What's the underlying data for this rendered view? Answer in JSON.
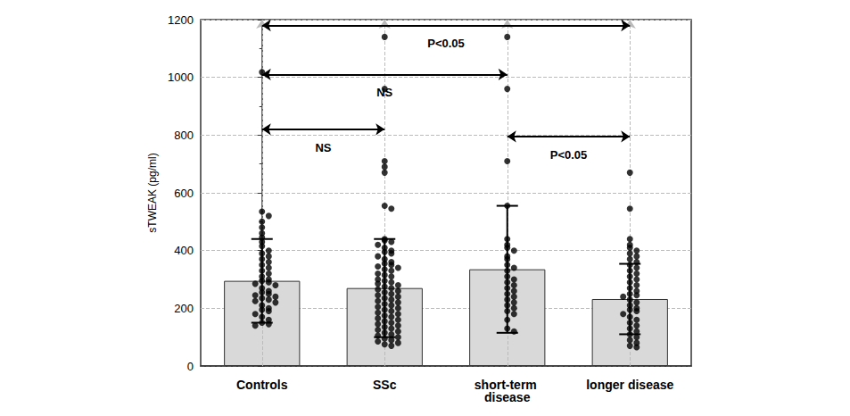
{
  "chart_data": {
    "type": "bar",
    "categories": [
      "Controls",
      "SSc",
      "short-term disease",
      "longer disease"
    ],
    "values": [
      295,
      270,
      335,
      232
    ],
    "errors": [
      145,
      170,
      220,
      122
    ],
    "points": [
      [
        1018,
        535,
        520,
        500,
        480,
        460,
        445,
        430,
        415,
        400,
        390,
        380,
        370,
        360,
        350,
        340,
        330,
        320,
        310,
        300,
        295,
        290,
        285,
        280,
        270,
        260,
        255,
        250,
        245,
        240,
        235,
        230,
        225,
        220,
        210,
        200,
        195,
        190,
        180,
        170,
        160,
        150,
        145,
        140
      ],
      [
        1140,
        960,
        710,
        690,
        670,
        555,
        545,
        440,
        435,
        430,
        420,
        410,
        400,
        395,
        390,
        380,
        370,
        360,
        355,
        350,
        345,
        340,
        335,
        330,
        320,
        315,
        310,
        300,
        295,
        290,
        285,
        280,
        275,
        270,
        265,
        260,
        255,
        250,
        245,
        240,
        235,
        230,
        225,
        220,
        215,
        210,
        205,
        200,
        195,
        190,
        185,
        180,
        175,
        170,
        165,
        160,
        155,
        150,
        145,
        140,
        135,
        130,
        125,
        120,
        115,
        110,
        105,
        100,
        95,
        90,
        85,
        80,
        75,
        70
      ],
      [
        1140,
        960,
        710,
        555,
        440,
        420,
        410,
        400,
        380,
        370,
        350,
        340,
        330,
        310,
        300,
        290,
        280,
        270,
        260,
        250,
        240,
        230,
        220,
        210,
        200,
        190,
        180,
        160,
        130,
        120
      ],
      [
        670,
        545,
        440,
        420,
        410,
        400,
        390,
        380,
        370,
        360,
        350,
        340,
        330,
        320,
        310,
        300,
        290,
        280,
        270,
        260,
        250,
        245,
        240,
        230,
        220,
        210,
        200,
        195,
        190,
        180,
        170,
        160,
        150,
        140,
        130,
        120,
        110,
        100,
        90,
        80,
        70,
        65
      ]
    ],
    "color": "#d9d9d9",
    "ylabel": "sTWEAK (pg/ml)",
    "ylim": [
      0,
      1200
    ],
    "yticks": [
      0,
      200,
      400,
      600,
      800,
      1000,
      1200
    ],
    "grid": true,
    "comparisons": [
      {
        "from": "Controls",
        "to": "longer disease",
        "y": 1180,
        "label": "P<0.05"
      },
      {
        "from": "Controls",
        "to": "short-term disease",
        "y": 1010,
        "label": "NS"
      },
      {
        "from": "Controls",
        "to": "SSc",
        "y": 820,
        "label": "NS"
      },
      {
        "from": "short-term disease",
        "to": "longer disease",
        "y": 795,
        "label": "P<0.05"
      }
    ]
  }
}
